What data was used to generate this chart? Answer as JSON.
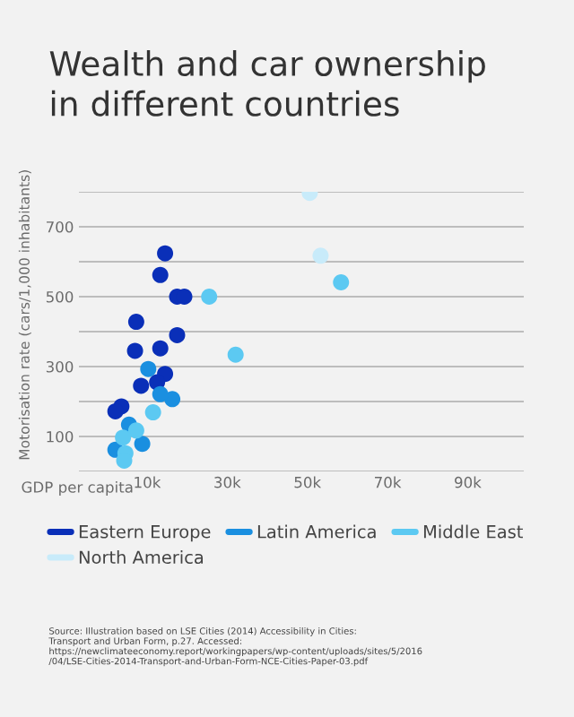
{
  "chart_data": {
    "type": "scatter",
    "title": "Wealth and car ownership\nin different countries",
    "xlabel": "GDP per capita",
    "ylabel": "Motorisation rate (cars/1,000 inhabitants)",
    "xlim": [
      -7000,
      104000
    ],
    "xticks": [
      {
        "value": 10000,
        "label": "10k"
      },
      {
        "value": 30000,
        "label": "30k"
      },
      {
        "value": 50000,
        "label": "50k"
      },
      {
        "value": 70000,
        "label": "70k"
      },
      {
        "value": 90000,
        "label": "90k"
      }
    ],
    "ylim": [
      0,
      800
    ],
    "yticks": [
      {
        "value": 0,
        "label": null
      },
      100,
      {
        "value": 200,
        "label": null
      },
      300,
      {
        "value": 400,
        "label": null
      },
      500,
      {
        "value": 600,
        "label": null
      },
      700,
      {
        "value": 800,
        "label": null
      }
    ],
    "grid": "y",
    "legend": "bottom",
    "marker": "circle",
    "series": [
      {
        "name": "Eastern Europe",
        "color": "#0a2fb8",
        "x": [
          14500,
          13300,
          17500,
          19300,
          7300,
          7000,
          13300,
          17500,
          14500,
          8500,
          12500,
          3600,
          2100
        ],
        "values": [
          624,
          562,
          500,
          500,
          428,
          345,
          352,
          390,
          279,
          245,
          255,
          186,
          172
        ]
      },
      {
        "name": "Latin America",
        "color": "#1a8fe0",
        "x": [
          10300,
          16300,
          13300,
          8800,
          2100,
          5500
        ],
        "values": [
          293,
          207,
          221,
          79,
          62,
          134
        ]
      },
      {
        "name": "Middle East",
        "color": "#5cc9f2",
        "x": [
          25500,
          32100,
          58400,
          11500,
          4600,
          4300,
          7300,
          4000
        ],
        "values": [
          500,
          334,
          541,
          169,
          52,
          31,
          117,
          97
        ]
      },
      {
        "name": "North America",
        "color": "#c8ebfa",
        "x": [
          50600,
          53300
        ],
        "values": [
          797,
          617
        ]
      }
    ],
    "annotations": [
      "Source: Illustration based on LSE Cities (2014) Accessibility in Cities: Transport and Urban Form, p.27. Accessed: https://newclimateeconomy.report/workingpapers/wp-content/uploads/sites/5/2016/04/LSE-Cities-2014-Transport-and-Urban-Form-NCE-Cities-Paper-03.pdf"
    ]
  }
}
